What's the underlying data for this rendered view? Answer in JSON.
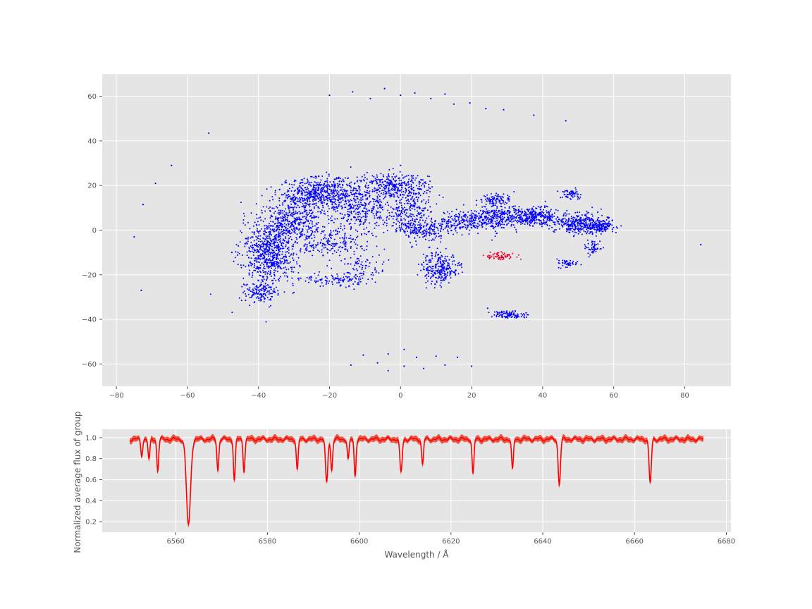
{
  "chart_data": [
    {
      "type": "scatter",
      "title": "",
      "xlabel": "",
      "ylabel": "",
      "xlim": [
        -84,
        93
      ],
      "ylim": [
        -70,
        70
      ],
      "xticks": [
        -80,
        -60,
        -40,
        -20,
        0,
        20,
        40,
        60,
        80
      ],
      "yticks": [
        -60,
        -40,
        -20,
        0,
        20,
        40,
        60
      ],
      "xtick_labels": [
        "−80",
        "−60",
        "−40",
        "−20",
        "0",
        "20",
        "40",
        "60",
        "80"
      ],
      "ytick_labels": [
        "−60",
        "−40",
        "−20",
        "0",
        "20",
        "40",
        "60"
      ],
      "grid": true,
      "background": "#e5e5e5",
      "colors": {
        "points": "#0000ff",
        "highlighted_group": "#e8002a"
      },
      "series": [
        {
          "role": "all",
          "clusters": [
            {
              "cx": -37,
              "cy": -10,
              "rx": 7,
              "ry": 14,
              "n": 700
            },
            {
              "cx": -40,
              "cy": -28,
              "rx": 4,
              "ry": 4,
              "n": 120
            },
            {
              "cx": -30,
              "cy": 5,
              "rx": 7,
              "ry": 10,
              "n": 400
            },
            {
              "cx": -22,
              "cy": 17,
              "rx": 10,
              "ry": 6,
              "n": 500
            },
            {
              "cx": -12,
              "cy": 10,
              "rx": 8,
              "ry": 10,
              "n": 350
            },
            {
              "cx": -2,
              "cy": 20,
              "rx": 8,
              "ry": 5,
              "n": 300
            },
            {
              "cx": 2,
              "cy": 8,
              "rx": 6,
              "ry": 10,
              "n": 250
            },
            {
              "cx": -20,
              "cy": -6,
              "rx": 10,
              "ry": 6,
              "n": 200
            },
            {
              "cx": -18,
              "cy": -22,
              "rx": 8,
              "ry": 3,
              "n": 120
            },
            {
              "cx": -10,
              "cy": -15,
              "rx": 5,
              "ry": 5,
              "n": 60
            },
            {
              "cx": 6,
              "cy": 0,
              "rx": 6,
              "ry": 4,
              "n": 150
            },
            {
              "cx": 11,
              "cy": -17,
              "rx": 5,
              "ry": 7,
              "n": 250
            },
            {
              "cx": 18,
              "cy": 4,
              "rx": 8,
              "ry": 4,
              "n": 250
            },
            {
              "cx": 28,
              "cy": 6,
              "rx": 7,
              "ry": 5,
              "n": 250
            },
            {
              "cx": 27,
              "cy": 14,
              "rx": 4,
              "ry": 2,
              "n": 80
            },
            {
              "cx": 38,
              "cy": 6,
              "rx": 6,
              "ry": 4,
              "n": 300
            },
            {
              "cx": 48,
              "cy": 16,
              "rx": 3,
              "ry": 2,
              "n": 60
            },
            {
              "cx": 50,
              "cy": 3,
              "rx": 6,
              "ry": 4,
              "n": 300
            },
            {
              "cx": 56,
              "cy": 2,
              "rx": 4,
              "ry": 3,
              "n": 150
            },
            {
              "cx": 54,
              "cy": -8,
              "rx": 2,
              "ry": 3,
              "n": 50
            },
            {
              "cx": 47,
              "cy": -15,
              "rx": 3,
              "ry": 1.5,
              "n": 40
            },
            {
              "cx": 31,
              "cy": -38,
              "rx": 4,
              "ry": 1.5,
              "n": 100
            }
          ],
          "points": [
            [
              -75,
              -3
            ],
            [
              -73,
              -27
            ],
            [
              -72.5,
              11.5
            ],
            [
              -69,
              21
            ],
            [
              -64.5,
              29
            ],
            [
              -54,
              43.5
            ],
            [
              -47.5,
              -10
            ],
            [
              -47,
              -14
            ],
            [
              84.5,
              -6.5
            ],
            [
              -20,
              60.5
            ],
            [
              -13.5,
              62
            ],
            [
              -8.5,
              59
            ],
            [
              -4.5,
              63.5
            ],
            [
              0,
              60.5
            ],
            [
              4,
              61.5
            ],
            [
              8.5,
              59
            ],
            [
              12.5,
              61
            ],
            [
              15,
              56.5
            ],
            [
              19.5,
              57
            ],
            [
              24,
              54.5
            ],
            [
              29,
              54
            ],
            [
              37.5,
              51.5
            ],
            [
              46.5,
              49
            ],
            [
              -14,
              -60.5
            ],
            [
              -10.5,
              -56
            ],
            [
              -6.5,
              -59.5
            ],
            [
              -3.5,
              -55.5
            ],
            [
              -3.5,
              -63
            ],
            [
              1,
              -53.5
            ],
            [
              1,
              -61
            ],
            [
              4.5,
              -57
            ],
            [
              6.5,
              -62
            ],
            [
              10,
              -56.5
            ],
            [
              12.5,
              -60.5
            ],
            [
              16,
              -57
            ],
            [
              20,
              -61
            ],
            [
              0,
              29
            ],
            [
              24.5,
              -35
            ]
          ]
        },
        {
          "role": "selected-group",
          "clusters": [
            {
              "cx": 28,
              "cy": -11.5,
              "rx": 3.5,
              "ry": 1.5,
              "n": 70
            }
          ]
        }
      ]
    },
    {
      "type": "line",
      "title": "",
      "xlabel": "Wavelength / Å",
      "ylabel": "Normalized average flux of group",
      "xlim": [
        6544,
        6681
      ],
      "ylim": [
        0.1,
        1.08
      ],
      "xticks": [
        6560,
        6580,
        6600,
        6620,
        6640,
        6660,
        6680
      ],
      "yticks": [
        0.2,
        0.4,
        0.6,
        0.8,
        1.0
      ],
      "xtick_labels": [
        "6560",
        "6580",
        "6600",
        "6620",
        "6640",
        "6660",
        "6680"
      ],
      "ytick_labels": [
        "0.2",
        "0.4",
        "0.6",
        "0.8",
        "1.0"
      ],
      "grid": true,
      "background": "#e5e5e5",
      "colors": {
        "line": "#ff0000",
        "band": "#e8402a"
      },
      "x_range": [
        6550,
        6675
      ],
      "continuum": 0.985,
      "absorption_lines": [
        {
          "x": 6562.8,
          "depth": 0.82,
          "width": 0.45
        },
        {
          "x": 6552.6,
          "depth": 0.15,
          "width": 0.2
        },
        {
          "x": 6554.2,
          "depth": 0.2,
          "width": 0.2
        },
        {
          "x": 6556.1,
          "depth": 0.3,
          "width": 0.2
        },
        {
          "x": 6569.2,
          "depth": 0.3,
          "width": 0.2
        },
        {
          "x": 6572.8,
          "depth": 0.4,
          "width": 0.2
        },
        {
          "x": 6574.9,
          "depth": 0.3,
          "width": 0.2
        },
        {
          "x": 6586.5,
          "depth": 0.3,
          "width": 0.2
        },
        {
          "x": 6592.9,
          "depth": 0.42,
          "width": 0.25
        },
        {
          "x": 6594.0,
          "depth": 0.3,
          "width": 0.2
        },
        {
          "x": 6597.6,
          "depth": 0.2,
          "width": 0.2
        },
        {
          "x": 6599.1,
          "depth": 0.35,
          "width": 0.2
        },
        {
          "x": 6609.1,
          "depth": 0.32,
          "width": 0.25
        },
        {
          "x": 6613.8,
          "depth": 0.25,
          "width": 0.2
        },
        {
          "x": 6624.8,
          "depth": 0.34,
          "width": 0.2
        },
        {
          "x": 6633.4,
          "depth": 0.3,
          "width": 0.2
        },
        {
          "x": 6643.6,
          "depth": 0.43,
          "width": 0.25
        },
        {
          "x": 6663.4,
          "depth": 0.42,
          "width": 0.25
        }
      ]
    }
  ]
}
